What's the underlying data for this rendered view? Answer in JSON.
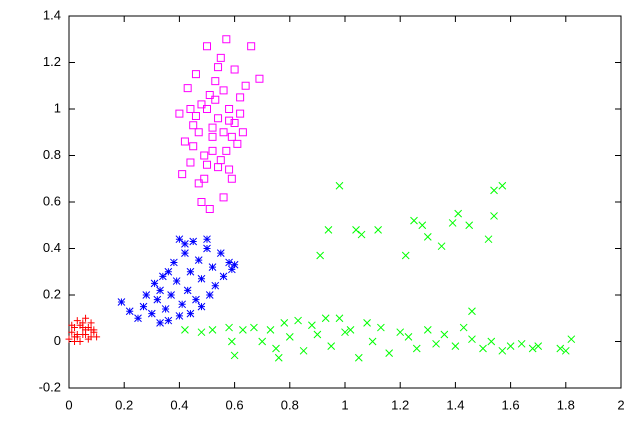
{
  "chart_data": {
    "type": "scatter",
    "xlim": [
      0,
      2
    ],
    "ylim": [
      -0.2,
      1.4
    ],
    "xticks": [
      0,
      0.2,
      0.4,
      0.6,
      0.8,
      1,
      1.2,
      1.4,
      1.6,
      1.8,
      2
    ],
    "yticks": [
      -0.2,
      0,
      0.2,
      0.4,
      0.6,
      0.8,
      1,
      1.2,
      1.4
    ],
    "grid": false,
    "series": [
      {
        "color": "#ff0000",
        "marker": "plus",
        "x": [
          0.0,
          0.01,
          0.02,
          0.03,
          0.04,
          0.05,
          0.06,
          0.07,
          0.08,
          0.09,
          0.1,
          0.02,
          0.03,
          0.05,
          0.06,
          0.08,
          0.01,
          0.04,
          0.07,
          0.09,
          0.03,
          0.05,
          0.02,
          0.06,
          0.08
        ],
        "values": [
          0.01,
          0.04,
          0.06,
          0.02,
          0.07,
          0.03,
          0.05,
          0.01,
          0.08,
          0.04,
          0.02,
          0.0,
          0.09,
          0.06,
          0.03,
          0.02,
          0.07,
          0.0,
          0.06,
          0.05,
          0.03,
          0.08,
          0.02,
          0.1,
          0.05
        ]
      },
      {
        "color": "#0000ff",
        "marker": "star",
        "x": [
          0.19,
          0.22,
          0.25,
          0.27,
          0.28,
          0.3,
          0.31,
          0.32,
          0.33,
          0.34,
          0.35,
          0.36,
          0.37,
          0.38,
          0.39,
          0.4,
          0.41,
          0.42,
          0.43,
          0.44,
          0.45,
          0.46,
          0.47,
          0.48,
          0.5,
          0.51,
          0.52,
          0.53,
          0.55,
          0.56,
          0.58,
          0.59,
          0.6,
          0.36,
          0.4,
          0.44,
          0.48,
          0.33,
          0.42,
          0.5
        ],
        "values": [
          0.17,
          0.13,
          0.1,
          0.15,
          0.2,
          0.12,
          0.25,
          0.18,
          0.22,
          0.28,
          0.14,
          0.3,
          0.2,
          0.34,
          0.26,
          0.44,
          0.16,
          0.38,
          0.22,
          0.3,
          0.43,
          0.18,
          0.35,
          0.27,
          0.4,
          0.2,
          0.32,
          0.24,
          0.38,
          0.28,
          0.34,
          0.31,
          0.33,
          0.09,
          0.11,
          0.12,
          0.15,
          0.08,
          0.42,
          0.44
        ]
      },
      {
        "color": "#ff00ff",
        "marker": "square",
        "x": [
          0.4,
          0.41,
          0.42,
          0.43,
          0.44,
          0.45,
          0.46,
          0.47,
          0.48,
          0.49,
          0.5,
          0.51,
          0.52,
          0.53,
          0.54,
          0.55,
          0.56,
          0.57,
          0.58,
          0.59,
          0.6,
          0.61,
          0.62,
          0.63,
          0.64,
          0.66,
          0.69,
          0.54,
          0.5,
          0.52,
          0.56,
          0.47,
          0.58,
          0.45,
          0.55,
          0.6,
          0.49,
          0.53,
          0.57,
          0.44,
          0.51,
          0.62,
          0.48,
          0.54,
          0.5,
          0.56,
          0.59,
          0.46,
          0.52,
          0.58
        ],
        "values": [
          0.98,
          0.72,
          0.86,
          1.09,
          0.77,
          0.93,
          1.15,
          0.68,
          1.02,
          0.8,
          1.27,
          0.57,
          0.88,
          1.12,
          0.75,
          1.22,
          0.62,
          1.3,
          0.95,
          0.7,
          1.17,
          0.85,
          1.05,
          0.9,
          1.1,
          1.27,
          1.13,
          0.96,
          1.0,
          0.82,
          0.9,
          0.9,
          1.0,
          0.84,
          0.78,
          0.94,
          0.7,
          1.04,
          0.82,
          1.0,
          1.06,
          0.98,
          0.6,
          1.18,
          0.76,
          1.08,
          0.88,
          0.97,
          0.92,
          0.74
        ]
      },
      {
        "color": "#00ff00",
        "marker": "cross",
        "x": [
          0.42,
          0.48,
          0.52,
          0.58,
          0.6,
          0.63,
          0.67,
          0.7,
          0.73,
          0.76,
          0.78,
          0.8,
          0.83,
          0.85,
          0.88,
          0.9,
          0.93,
          0.95,
          0.98,
          1.0,
          1.02,
          1.05,
          1.08,
          1.1,
          1.13,
          1.16,
          1.2,
          1.23,
          1.26,
          1.3,
          1.33,
          1.36,
          1.4,
          1.43,
          1.46,
          1.5,
          1.53,
          1.57,
          1.6,
          1.64,
          1.68,
          1.7,
          1.78,
          1.8,
          1.82,
          0.98,
          1.57,
          1.54,
          1.41,
          1.25,
          1.54,
          1.28,
          1.39,
          1.45,
          0.94,
          1.04,
          1.12,
          1.06,
          1.3,
          1.52,
          1.35,
          1.22,
          0.91,
          0.59,
          0.75,
          1.46
        ],
        "values": [
          0.05,
          0.04,
          0.05,
          0.06,
          -0.06,
          0.05,
          0.06,
          0.0,
          0.05,
          -0.07,
          0.08,
          0.02,
          0.09,
          -0.04,
          0.07,
          0.03,
          0.1,
          -0.02,
          0.1,
          0.04,
          0.05,
          -0.07,
          0.08,
          0.0,
          0.06,
          -0.05,
          0.04,
          0.02,
          -0.03,
          0.05,
          -0.01,
          0.03,
          -0.02,
          0.06,
          0.01,
          -0.03,
          0.0,
          -0.04,
          -0.02,
          -0.01,
          -0.03,
          -0.02,
          -0.03,
          -0.04,
          0.01,
          0.67,
          0.67,
          0.65,
          0.55,
          0.52,
          0.54,
          0.5,
          0.51,
          0.5,
          0.48,
          0.48,
          0.48,
          0.46,
          0.45,
          0.44,
          0.41,
          0.37,
          0.37,
          0.0,
          -0.03,
          0.13
        ]
      }
    ]
  }
}
